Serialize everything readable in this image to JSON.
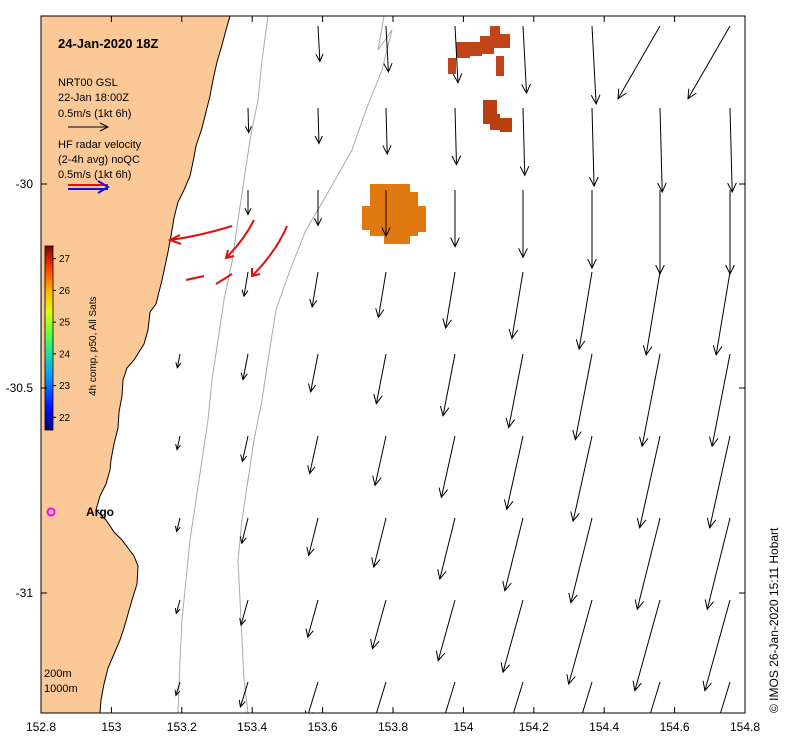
{
  "map": {
    "title": "24-Jan-2020 18Z",
    "x_ticks": [
      "152.8",
      "153",
      "153.2",
      "153.4",
      "153.6",
      "153.8",
      "154",
      "154.2",
      "154.4",
      "154.6",
      "154.8"
    ],
    "y_ticks": [
      "-30",
      "-30.5",
      "-31"
    ],
    "lon_range": [
      152.8,
      154.8
    ],
    "lat_range": [
      -31.3,
      -29.6
    ],
    "credit": "© IMOS 26-Jan-2020 15:11 Hobart",
    "colors": {
      "land": "#fbc998",
      "bathymetry": "#aaaaaa",
      "hf_radar": "#e01010",
      "gsl_arrow": "#000000",
      "argo": "#ff00ff"
    }
  },
  "legend": {
    "gsl_title": "NRT00 GSL",
    "gsl_time": "22-Jan 18:00Z",
    "gsl_scale": "0.5m/s (1kt 6h)",
    "hf_title": "HF radar velocity",
    "hf_sub": "(2-4h avg) noQC",
    "hf_scale": "0.5m/s (1kt 6h)"
  },
  "colorbar": {
    "label": "4h comp, p50, All Sats",
    "ticks": [
      "27",
      "26",
      "25",
      "24",
      "23",
      "22"
    ],
    "range": [
      21.6,
      27.4
    ]
  },
  "argo": {
    "label": "Argo"
  },
  "bathy_labels": {
    "shallow": "200m",
    "deep": "1000m"
  }
}
